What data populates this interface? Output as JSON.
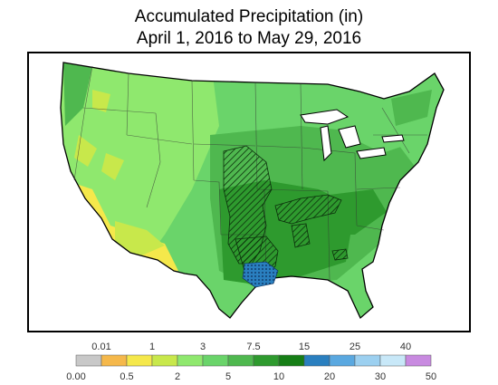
{
  "title": {
    "line1": "Accumulated Precipitation (in)",
    "line2": "April 1, 2016 to May 29, 2016"
  },
  "legend": {
    "bins": [
      {
        "color": "#c8c8c8"
      },
      {
        "color": "#f5b84b"
      },
      {
        "color": "#f5e84b"
      },
      {
        "color": "#c8e84b"
      },
      {
        "color": "#8fe86e"
      },
      {
        "color": "#6ad46a"
      },
      {
        "color": "#4fb84f"
      },
      {
        "color": "#2e9a2e"
      },
      {
        "color": "#167e16"
      },
      {
        "color": "#2a7fbf"
      },
      {
        "color": "#5aa8e0"
      },
      {
        "color": "#9cd0f0"
      },
      {
        "color": "#c8e8f8"
      },
      {
        "color": "#c88ae0"
      }
    ],
    "top_labels": [
      "0.01",
      "1",
      "3",
      "7.5",
      "15",
      "25",
      "40"
    ],
    "bottom_labels": [
      "0.00",
      "0.5",
      "2",
      "5",
      "10",
      "20",
      "30",
      "50"
    ]
  }
}
